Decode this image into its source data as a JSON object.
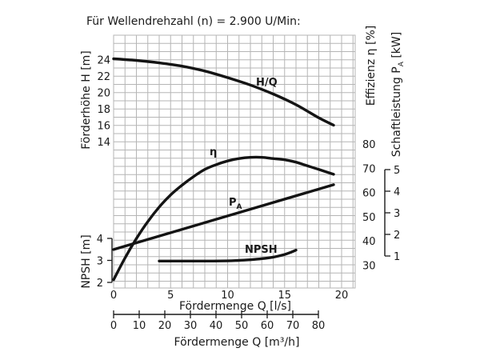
{
  "chart_data": {
    "type": "line",
    "title": "Für Wellendrehzahl (n) = 2.900 U/Min:",
    "colors": {
      "grid": "#b5b5b5",
      "curve": "#141414",
      "text": "#1a1a1a"
    },
    "x_primary": {
      "label": "Fördermenge Q [l/s]",
      "range": [
        0,
        20
      ],
      "ticks": [
        "0",
        "5",
        "10",
        "15",
        "20"
      ],
      "tick_values": [
        0,
        5,
        10,
        15,
        20
      ]
    },
    "x_secondary": {
      "label": "Fördermenge Q [m³/h]",
      "range": [
        0,
        80
      ],
      "ticks": [
        "0",
        "10",
        "20",
        "30",
        "40",
        "50",
        "60",
        "70",
        "80"
      ],
      "tick_values": [
        0,
        10,
        20,
        30,
        40,
        50,
        60,
        70,
        80
      ]
    },
    "y_head": {
      "label": "Förderhöhe H [m]",
      "range": [
        12,
        26
      ],
      "ticks": [
        "24",
        "22",
        "20",
        "18",
        "16",
        "14"
      ],
      "tick_values": [
        24,
        22,
        20,
        18,
        16,
        14
      ]
    },
    "y_npsh": {
      "label": "NPSH [m]",
      "range": [
        2,
        4
      ],
      "ticks": [
        "4",
        "3",
        "2"
      ],
      "tick_values": [
        4,
        3,
        2
      ]
    },
    "y_efficiency": {
      "label": "Effizienz η [%]",
      "range": [
        25,
        85
      ],
      "ticks": [
        "80",
        "70",
        "60",
        "50",
        "40",
        "30"
      ],
      "tick_values": [
        80,
        70,
        60,
        50,
        40,
        30
      ]
    },
    "y_power": {
      "label_main": "Schaftleistung P",
      "label_sub": "A",
      "label_unit": " [kW]",
      "range": [
        1,
        5
      ],
      "ticks": [
        "5",
        "4",
        "3",
        "2",
        "1"
      ],
      "tick_values": [
        5,
        4,
        3,
        2,
        1
      ]
    },
    "series": [
      {
        "name": "H/Q",
        "label": "H/Q",
        "axis": "head",
        "x": [
          0,
          2,
          4,
          6,
          8,
          10,
          12,
          14,
          16,
          18,
          19.3
        ],
        "y": [
          24.1,
          23.9,
          23.6,
          23.2,
          22.6,
          21.8,
          20.9,
          19.8,
          18.5,
          16.9,
          16.0
        ]
      },
      {
        "name": "η",
        "label": "η",
        "axis": "efficiency",
        "x": [
          0,
          1,
          2,
          3,
          4,
          5,
          6,
          7,
          8,
          9,
          10,
          11,
          12,
          13,
          14,
          15,
          16,
          17,
          18,
          19.3
        ],
        "y": [
          24,
          33,
          41,
          48,
          54,
          59,
          63,
          66.5,
          69.5,
          71.5,
          73,
          74,
          74.5,
          74.5,
          74,
          73.5,
          72.5,
          71,
          69.5,
          67.5
        ]
      },
      {
        "name": "P_A",
        "label_main": "P",
        "label_sub": "A",
        "axis": "power",
        "x": [
          0,
          19.3
        ],
        "y": [
          1.3,
          4.3
        ]
      },
      {
        "name": "NPSH",
        "label": "NPSH",
        "axis": "npsh",
        "x": [
          4,
          6,
          8,
          10,
          11,
          12,
          13,
          14,
          15,
          15.6,
          16.0
        ],
        "y": [
          2.97,
          2.97,
          2.97,
          2.98,
          3.0,
          3.03,
          3.08,
          3.15,
          3.27,
          3.38,
          3.47
        ]
      }
    ]
  }
}
